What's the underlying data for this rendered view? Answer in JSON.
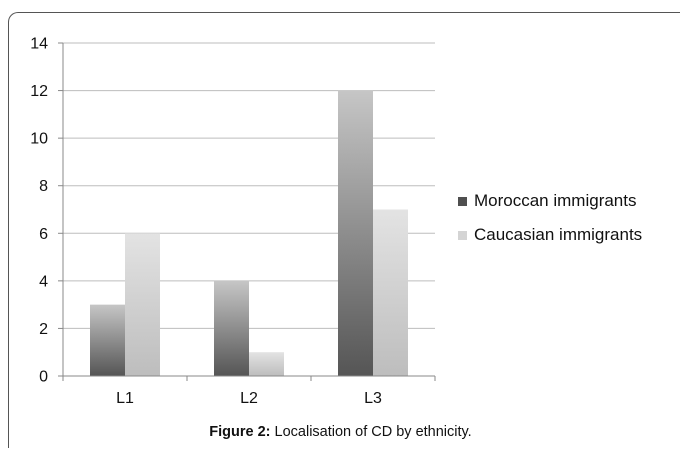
{
  "chart_data": {
    "type": "bar",
    "categories": [
      "L1",
      "L2",
      "L3"
    ],
    "series": [
      {
        "name": "Moroccan immigrants",
        "values": [
          3,
          4,
          12
        ]
      },
      {
        "name": "Caucasian immigrants",
        "values": [
          6,
          1,
          7
        ]
      }
    ],
    "ylim": [
      0,
      14
    ],
    "yticks": [
      "0",
      "2",
      "4",
      "6",
      "8",
      "10",
      "12",
      "14"
    ],
    "grid": true,
    "legend": "right"
  },
  "caption": {
    "label": "Figure 2:",
    "text": " Localisation of CD by ethnicity."
  }
}
